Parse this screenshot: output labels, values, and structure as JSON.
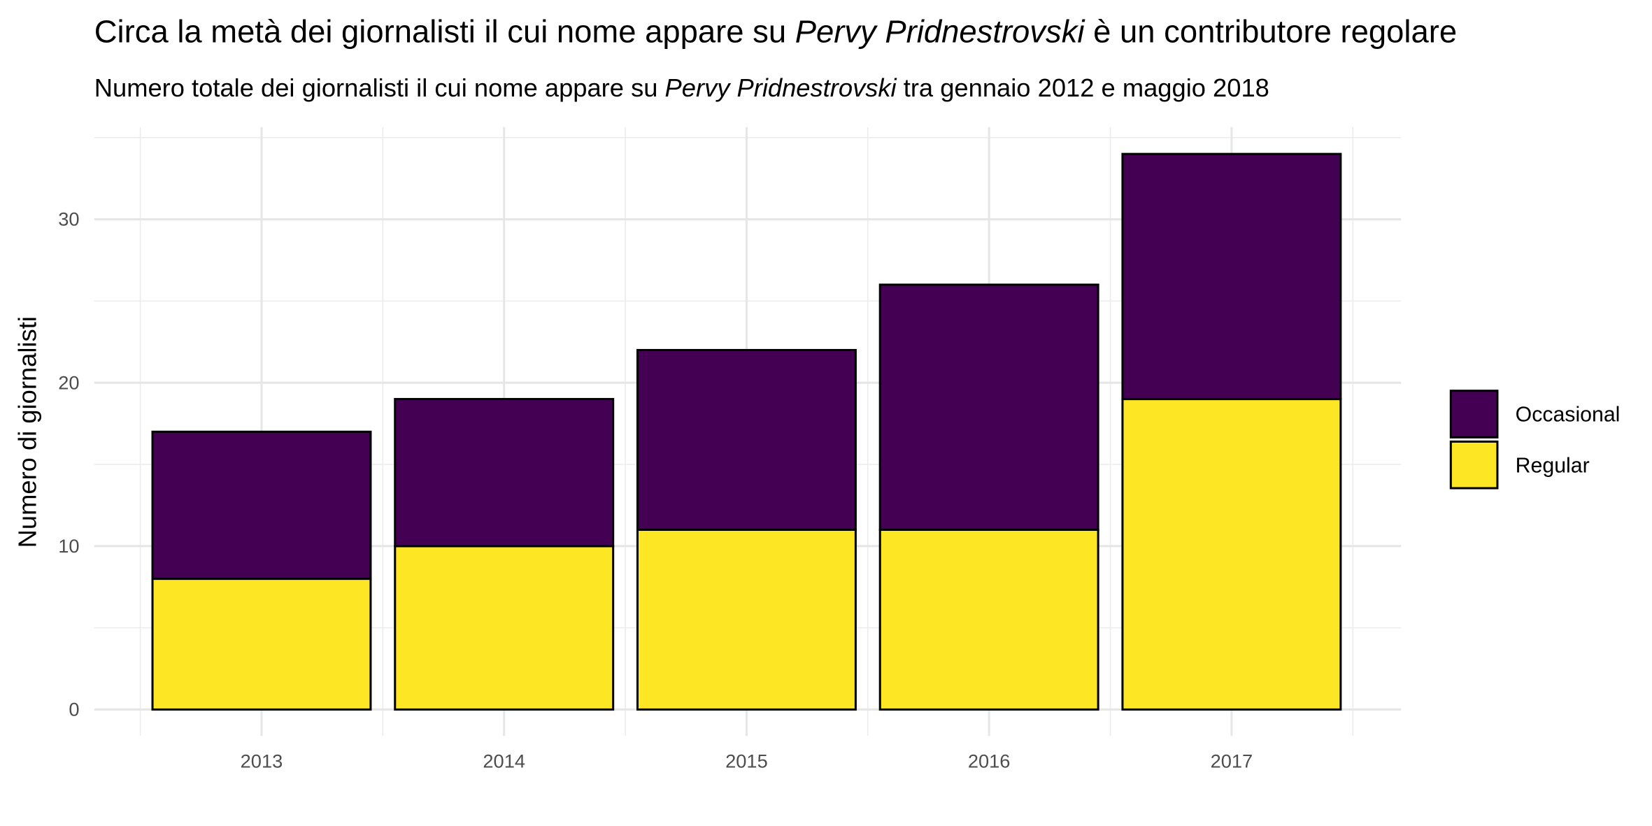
{
  "chart_data": {
    "type": "bar",
    "stacked": true,
    "title_parts": [
      "Circa la metà dei giornalisti il cui nome appare su ",
      "Pervy Pridnestrovski",
      " è un contributore regolare"
    ],
    "subtitle_parts": [
      "Numero totale dei giornalisti il cui nome appare su ",
      "Pervy Pridnestrovski",
      " tra gennaio 2012 e maggio 2018"
    ],
    "xlabel": "",
    "ylabel": "Numero di giornalisti",
    "categories": [
      "2013",
      "2014",
      "2015",
      "2016",
      "2017"
    ],
    "series": [
      {
        "name": "Regular",
        "values": [
          8,
          10,
          11,
          11,
          19
        ],
        "color": "#FDE725"
      },
      {
        "name": "Occasional",
        "values": [
          9,
          9,
          11,
          15,
          15
        ],
        "color": "#440154"
      }
    ],
    "legend_order": [
      "Occasional",
      "Regular"
    ],
    "legend_position": "right",
    "yticks": [
      0,
      10,
      20,
      30
    ],
    "ylim": [
      -1.6,
      35.7
    ],
    "grid": true
  }
}
